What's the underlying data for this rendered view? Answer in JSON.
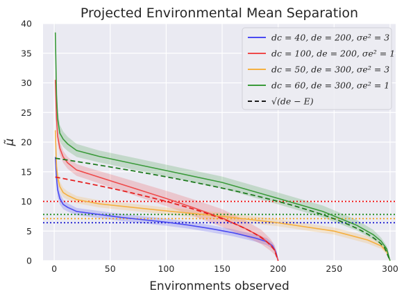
{
  "chart_data": {
    "type": "line",
    "title": "Projected Environmental Mean Separation",
    "xlabel": "Environments observed",
    "ylabel": "μ̃",
    "xlim": [
      -10,
      305
    ],
    "ylim": [
      0,
      40
    ],
    "xticks": [
      "0",
      "50",
      "100",
      "150",
      "200",
      "250",
      "300"
    ],
    "yticks": [
      "0",
      "5",
      "10",
      "15",
      "20",
      "25",
      "30",
      "35",
      "40"
    ],
    "grid": true,
    "legend_position": "top-right",
    "series": [
      {
        "name": "dc = 40, de = 200, σe² = 3",
        "color": "#4a4af2",
        "x": [
          1,
          2,
          3,
          5,
          8,
          12,
          20,
          40,
          60,
          80,
          100,
          120,
          140,
          160,
          180,
          190,
          195,
          198,
          200
        ],
        "values": [
          17.5,
          14,
          12,
          10.5,
          9.5,
          9,
          8.3,
          7.8,
          7.3,
          6.9,
          6.5,
          6,
          5.4,
          4.7,
          3.8,
          3.2,
          2.5,
          1.5,
          0
        ],
        "band": [
          1.5,
          1.5,
          1.2,
          1.0,
          0.8,
          0.7,
          0.6,
          0.6,
          0.6,
          0.6,
          0.6,
          0.6,
          0.6,
          0.6,
          0.6,
          0.6,
          0.5,
          0.4,
          0.2
        ]
      },
      {
        "name": "dc = 100, de = 200, σe² = 1",
        "color": "#ef4a4a",
        "x": [
          1,
          2,
          3,
          5,
          8,
          12,
          20,
          30,
          50,
          75,
          100,
          125,
          150,
          170,
          185,
          193,
          197,
          200
        ],
        "values": [
          30.5,
          24,
          21,
          19,
          17.5,
          16.5,
          15.3,
          14.7,
          13.5,
          12.0,
          10.5,
          8.9,
          7.2,
          5.5,
          4.0,
          2.7,
          1.8,
          0
        ],
        "band": [
          1.5,
          1.3,
          1.2,
          1.1,
          1.0,
          1.0,
          1.0,
          1.0,
          1.1,
          1.2,
          1.3,
          1.4,
          1.5,
          1.4,
          1.2,
          1.0,
          0.8,
          0.3
        ]
      },
      {
        "name": "dc = 50, de = 300, σe² = 3",
        "color": "#f5b041",
        "x": [
          1,
          2,
          3,
          5,
          8,
          12,
          20,
          40,
          75,
          100,
          150,
          200,
          250,
          280,
          292,
          297,
          300
        ],
        "values": [
          22,
          16,
          14,
          12.5,
          11.5,
          11,
          10.3,
          9.6,
          8.9,
          8.4,
          7.5,
          6.4,
          5.0,
          3.5,
          2.5,
          1.5,
          0
        ],
        "band": [
          1.5,
          1.3,
          1.1,
          0.9,
          0.8,
          0.7,
          0.6,
          0.6,
          0.6,
          0.6,
          0.6,
          0.6,
          0.6,
          0.6,
          0.5,
          0.4,
          0.2
        ]
      },
      {
        "name": "dc = 60, de = 300, σe² = 1",
        "color": "#3a9a3a",
        "x": [
          1,
          2,
          3,
          5,
          8,
          12,
          20,
          40,
          75,
          100,
          150,
          200,
          240,
          270,
          285,
          292,
          297,
          300
        ],
        "values": [
          38.5,
          28,
          24,
          21.5,
          20.5,
          19.7,
          18.6,
          17.6,
          16.2,
          15.2,
          13.2,
          10.5,
          8.3,
          6.0,
          4.4,
          3.3,
          2.0,
          0
        ],
        "band": [
          2.0,
          1.8,
          1.6,
          1.4,
          1.3,
          1.2,
          1.1,
          1.0,
          1.0,
          1.0,
          1.0,
          1.0,
          1.0,
          0.9,
          0.8,
          0.6,
          0.5,
          0.2
        ]
      }
    ],
    "reference": {
      "name": "√(de − E)",
      "color": "#1a1a1a",
      "style": "dashed"
    },
    "sqrt_fits": [
      {
        "color": "#e62020",
        "x_start": 1,
        "x_end": 200,
        "de": 200,
        "k": 1.0
      },
      {
        "color": "#1e7a1e",
        "x_start": 1,
        "x_end": 300,
        "de": 300,
        "k": 1.0
      }
    ],
    "hlines": [
      {
        "value": 10.0,
        "color": "#f00000"
      },
      {
        "value": 7.8,
        "color": "#1a8a1a"
      },
      {
        "value": 7.1,
        "color": "#f0a020"
      },
      {
        "value": 6.4,
        "color": "#1010d0"
      }
    ]
  }
}
